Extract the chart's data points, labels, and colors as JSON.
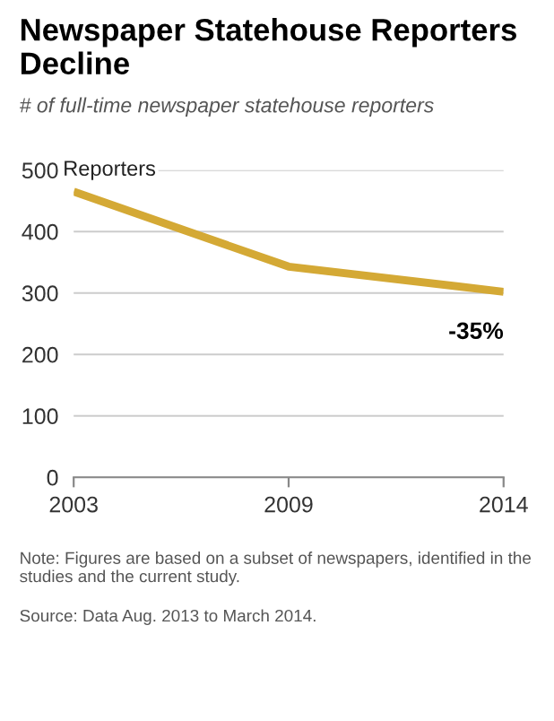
{
  "chart_data": {
    "type": "line",
    "title": "Newspaper Statehouse Reporters Decline",
    "subtitle": "# of full-time newspaper statehouse reporters",
    "categories": [
      "2003",
      "2009",
      "2014"
    ],
    "series": [
      {
        "name": "Reporters",
        "color": "#d4a935",
        "values": [
          465,
          343,
          302
        ]
      }
    ],
    "ylim": [
      0,
      500
    ],
    "yticks": [
      0,
      100,
      200,
      300,
      400,
      500
    ],
    "grid": "y",
    "legend": false,
    "marker": "none",
    "line_style": "solid",
    "annotations": [
      {
        "text": "-35%",
        "x": "2014",
        "y": 302
      },
      "Note: Figures are based on a subset of newspapers, identified in the studies and the current study.",
      "Source: Data Aug. 2013 to March 2014."
    ]
  }
}
